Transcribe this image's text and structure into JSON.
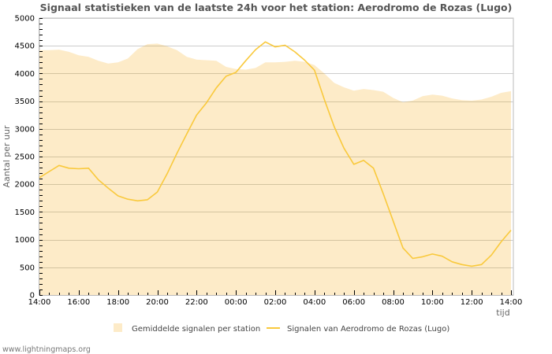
{
  "chart_data": {
    "type": "area+line",
    "title": "Signaal statistieken van de laatste 24h voor het station: Aerodromo de Rozas (Lugo)",
    "xlabel": "tijd",
    "ylabel": "Aantal per uur",
    "ylim": [
      0,
      5000
    ],
    "yticks": [
      0,
      500,
      1000,
      1500,
      2000,
      2500,
      3000,
      3500,
      4000,
      4500,
      5000
    ],
    "xticks": [
      "14:00",
      "16:00",
      "18:00",
      "20:00",
      "22:00",
      "00:00",
      "02:00",
      "04:00",
      "06:00",
      "08:00",
      "10:00",
      "12:00",
      "14:00"
    ],
    "grid": true,
    "legend_position": "bottom",
    "x": [
      "14:00",
      "14:30",
      "15:00",
      "15:30",
      "16:00",
      "16:30",
      "17:00",
      "17:30",
      "18:00",
      "18:30",
      "19:00",
      "19:30",
      "20:00",
      "20:30",
      "21:00",
      "21:30",
      "22:00",
      "22:30",
      "23:00",
      "23:30",
      "00:00",
      "00:30",
      "01:00",
      "01:30",
      "02:00",
      "02:30",
      "03:00",
      "03:30",
      "04:00",
      "04:30",
      "05:00",
      "05:30",
      "06:00",
      "06:30",
      "07:00",
      "07:30",
      "08:00",
      "08:30",
      "09:00",
      "09:30",
      "10:00",
      "10:30",
      "11:00",
      "11:30",
      "12:00",
      "12:30",
      "13:00",
      "13:30",
      "14:00"
    ],
    "series": [
      {
        "name": "Gemiddelde signalen per station",
        "type": "area",
        "color": "#fdebc8",
        "values": [
          4420,
          4420,
          4430,
          4390,
          4330,
          4300,
          4230,
          4180,
          4200,
          4270,
          4440,
          4530,
          4540,
          4490,
          4420,
          4300,
          4250,
          4240,
          4230,
          4120,
          4080,
          4070,
          4100,
          4200,
          4200,
          4210,
          4230,
          4210,
          4150,
          4000,
          3830,
          3750,
          3690,
          3720,
          3700,
          3670,
          3560,
          3480,
          3510,
          3590,
          3620,
          3600,
          3550,
          3520,
          3510,
          3530,
          3580,
          3650,
          3680
        ]
      },
      {
        "name": "Signalen van Aerodromo de Rozas (Lugo)",
        "type": "line",
        "color": "#f9c93c",
        "values": [
          2120,
          2230,
          2340,
          2290,
          2280,
          2290,
          2080,
          1930,
          1790,
          1730,
          1700,
          1720,
          1860,
          2190,
          2560,
          2910,
          3250,
          3470,
          3740,
          3950,
          4020,
          4230,
          4430,
          4570,
          4480,
          4510,
          4390,
          4240,
          4060,
          3530,
          3040,
          2650,
          2360,
          2430,
          2290,
          1830,
          1340,
          850,
          660,
          690,
          740,
          700,
          600,
          550,
          520,
          550,
          720,
          960,
          1170
        ]
      }
    ]
  },
  "legend": {
    "area_label": "Gemiddelde signalen per station",
    "line_label": "Signalen van Aerodromo de Rozas (Lugo)"
  },
  "footer": {
    "credit": "www.lightningmaps.org"
  },
  "colors": {
    "area_fill": "#fdebc8",
    "line": "#f9c93c",
    "grid_on_area": "#d4c4a0",
    "grid_plain": "#cccccc",
    "axis": "#bbbbbb"
  }
}
